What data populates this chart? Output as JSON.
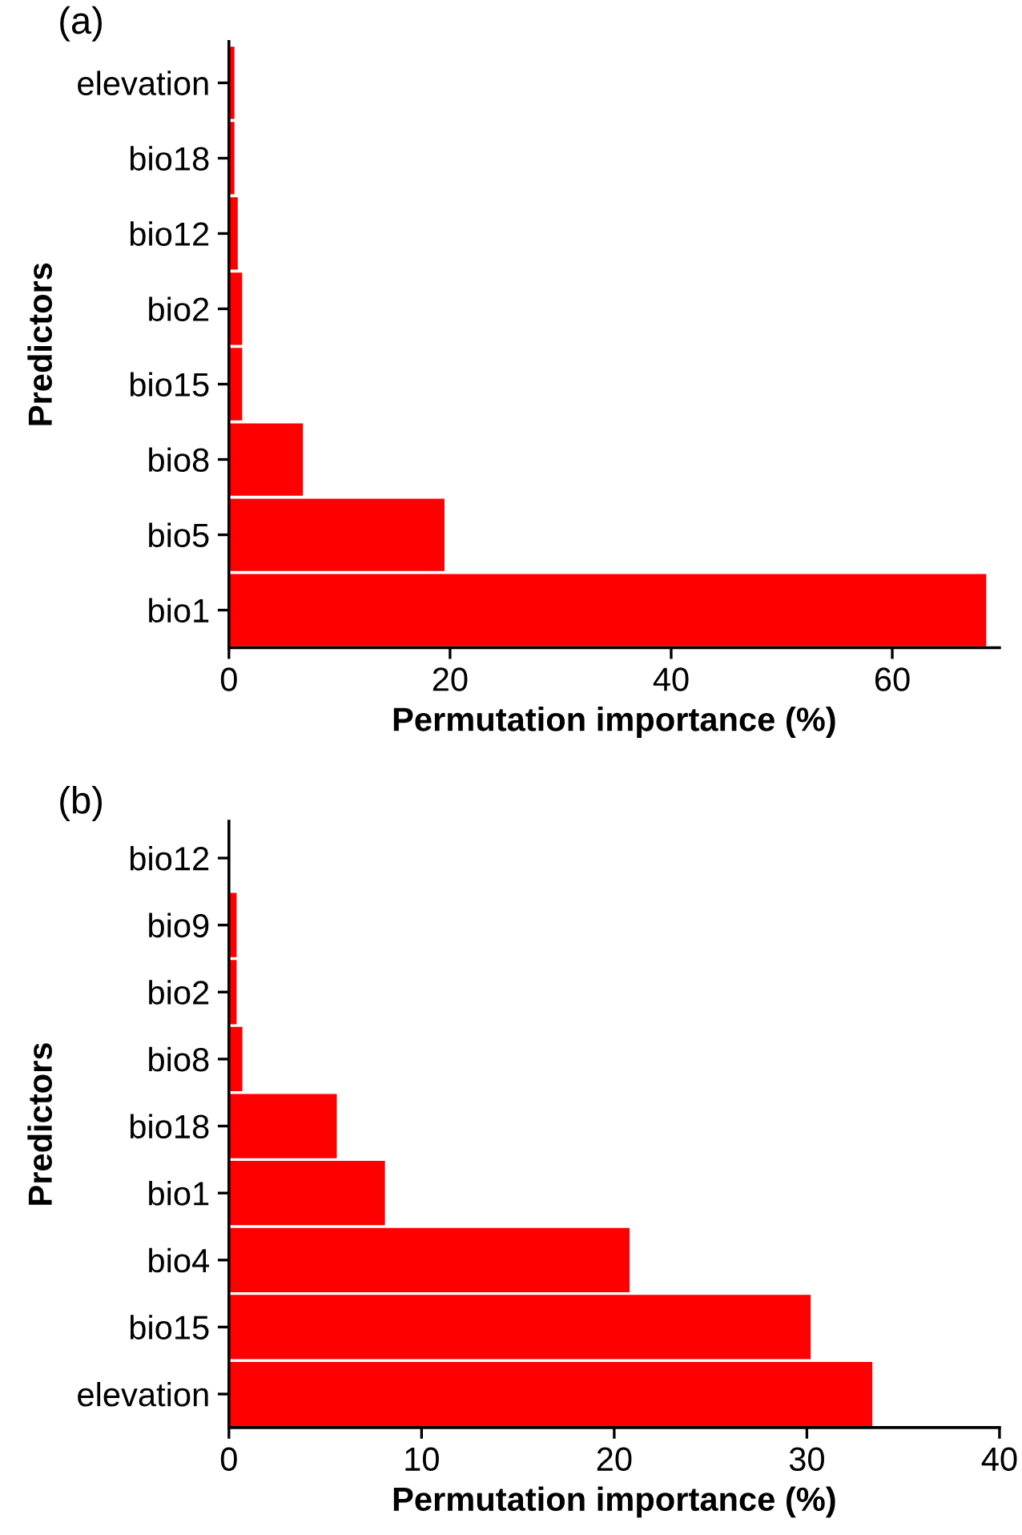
{
  "chart_data": [
    {
      "type": "bar",
      "orientation": "horizontal",
      "title": "(a)",
      "xlabel": "Permutation importance (%)",
      "ylabel": "Predictors",
      "categories": [
        "elevation",
        "bio18",
        "bio12",
        "bio2",
        "bio15",
        "bio8",
        "bio5",
        "bio1"
      ],
      "values": [
        0.5,
        0.5,
        0.8,
        1.2,
        1.2,
        6.7,
        19.5,
        68.5
      ],
      "color": "#ff0000",
      "xlim": [
        0,
        69.7
      ],
      "xticks": [
        0,
        20,
        40,
        60
      ],
      "grid": false,
      "legend": false
    },
    {
      "type": "bar",
      "orientation": "horizontal",
      "title": "(b)",
      "xlabel": "Permutation importance (%)",
      "ylabel": "Predictors",
      "categories": [
        "bio12",
        "bio9",
        "bio2",
        "bio8",
        "bio18",
        "bio1",
        "bio4",
        "bio15",
        "elevation"
      ],
      "values": [
        0,
        0.4,
        0.4,
        0.7,
        5.6,
        8.1,
        20.8,
        30.2,
        33.4
      ],
      "color": "#ff0000",
      "xlim": [
        0,
        40
      ],
      "xticks": [
        0,
        10,
        20,
        30,
        40
      ],
      "grid": false,
      "legend": false
    }
  ]
}
